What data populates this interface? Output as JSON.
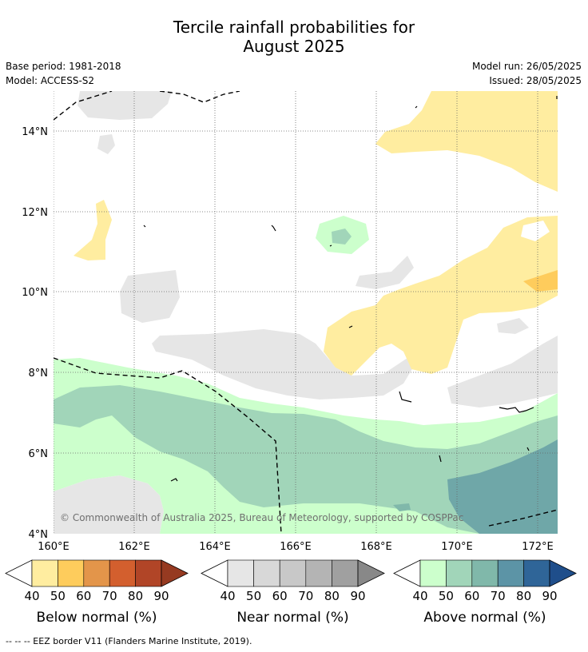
{
  "title_line1": "Tercile rainfall probabilities for",
  "title_line2": "August 2025",
  "meta_left": [
    "Base period: 1981-2018",
    "Model: ACCESS-S2"
  ],
  "meta_right": [
    "Model run: 26/05/2025",
    "Issued: 28/05/2025"
  ],
  "lat_labels": [
    "14°N",
    "12°N",
    "10°N",
    "8°N",
    "6°N",
    "4°N"
  ],
  "lon_labels": [
    "160°E",
    "162°E",
    "164°E",
    "166°E",
    "168°E",
    "170°E",
    "172°E"
  ],
  "copyright": "© Commonwealth of Australia 2025, Bureau of Meteorology, supported by COSPPac",
  "colorbars": [
    {
      "title": "Below normal (%)",
      "ticks": [
        "40",
        "50",
        "60",
        "70",
        "80",
        "90"
      ],
      "colors": [
        "#ffeda0",
        "#fecc5c",
        "#e3954a",
        "#d35f2e",
        "#b14527"
      ],
      "over": "#963a21"
    },
    {
      "title": "Near normal (%)",
      "ticks": [
        "40",
        "50",
        "60",
        "70",
        "80",
        "90"
      ],
      "colors": [
        "#e6e6e6",
        "#d8d8d8",
        "#c8c8c8",
        "#b4b4b4",
        "#a0a0a0"
      ],
      "over": "#888888"
    },
    {
      "title": "Above normal (%)",
      "ticks": [
        "40",
        "50",
        "60",
        "70",
        "80",
        "90"
      ],
      "colors": [
        "#ccffcc",
        "#a1d5b9",
        "#80b8aa",
        "#5c94a6",
        "#2f6598"
      ],
      "over": "#1f4e8b"
    }
  ],
  "footer": "--  --  -- EEZ border V11 (Flanders Marine Institute, 2019)."
}
